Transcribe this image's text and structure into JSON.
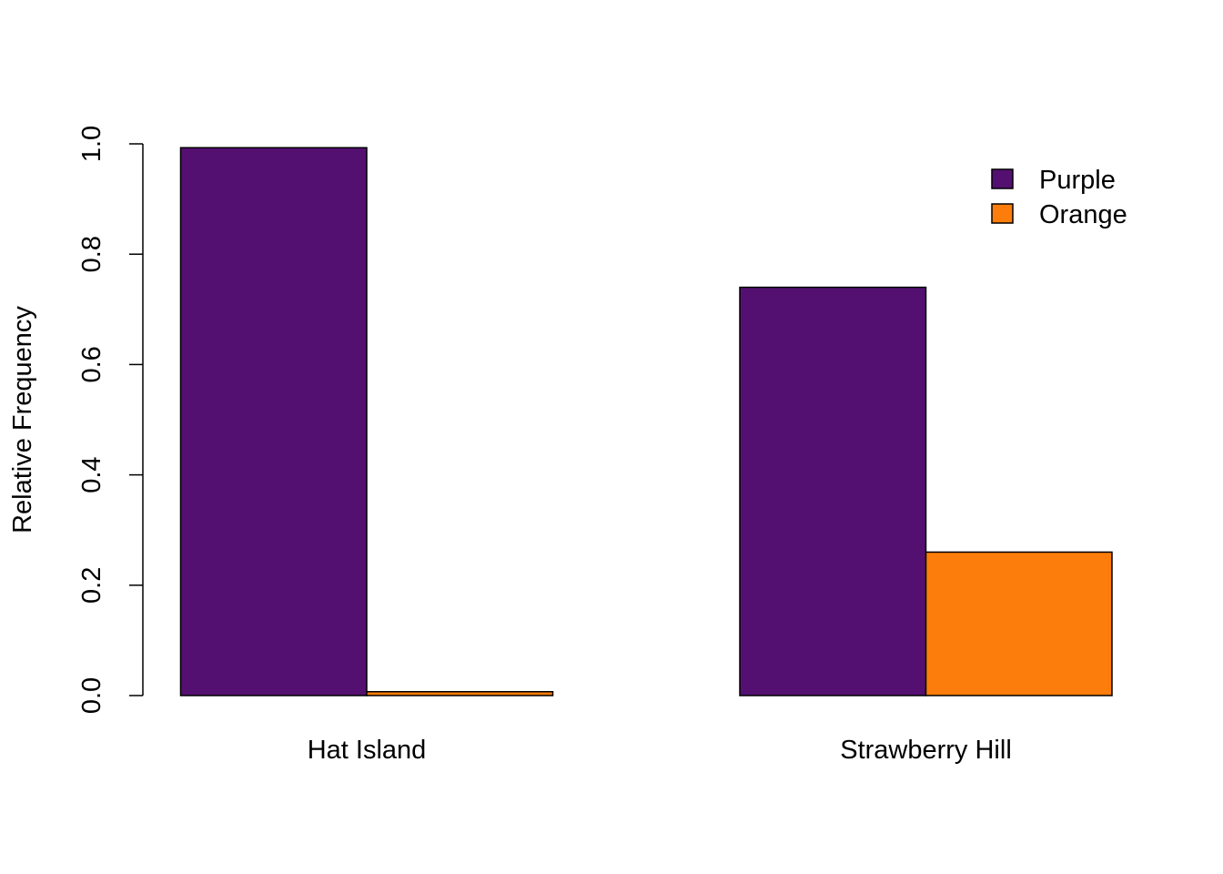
{
  "chart_data": {
    "type": "bar",
    "ylabel": "Relative Frequency",
    "xlabel": "",
    "title": "",
    "categories": [
      "Hat Island",
      "Strawberry Hill"
    ],
    "series": [
      {
        "name": "Purple",
        "color": "#541070",
        "values": [
          0.993,
          0.74
        ]
      },
      {
        "name": "Orange",
        "color": "#FC7D0B",
        "values": [
          0.007,
          0.26
        ]
      }
    ],
    "ylim": [
      0,
      1.0
    ],
    "yticks": [
      "0.0",
      "0.2",
      "0.4",
      "0.6",
      "0.8",
      "1.0"
    ],
    "legend_position": "top-right",
    "grid": false
  }
}
